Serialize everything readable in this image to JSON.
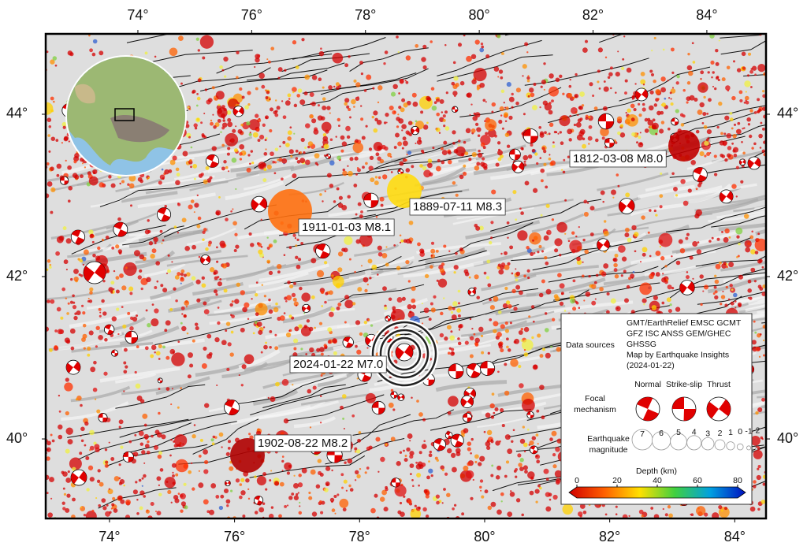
{
  "map": {
    "lon_ticks": [
      {
        "value": 74,
        "label": "74°"
      },
      {
        "value": 76,
        "label": "76°"
      },
      {
        "value": 78,
        "label": "78°"
      },
      {
        "value": 80,
        "label": "80°"
      },
      {
        "value": 82,
        "label": "82°"
      },
      {
        "value": 84,
        "label": "84°"
      }
    ],
    "lat_ticks": [
      {
        "value": 40,
        "label": "40°"
      },
      {
        "value": 42,
        "label": "42°"
      },
      {
        "value": 44,
        "label": "44°"
      }
    ],
    "top_lon_range": [
      72.38,
      85.04
    ],
    "bottom_lon_range": [
      72.98,
      84.5
    ],
    "lat_range": [
      39.02,
      44.99
    ],
    "events": [
      {
        "label": "1812-03-08 M8.0"
      },
      {
        "label": "1889-07-11 M8.3"
      },
      {
        "label": "1911-01-03 M8.1"
      },
      {
        "label": "2024-01-22 M7.0"
      },
      {
        "label": "1902-08-22 M8.2"
      }
    ]
  },
  "legend": {
    "data_sources_title": "Data sources",
    "data_sources": [
      "GMT/EarthRelief EMSC GCMT",
      "GFZ ISC ANSS GEM/GHEC",
      "GHSSG",
      "Map by Earthquake Insights",
      "(2024-01-22)"
    ],
    "focal_title": [
      "Focal",
      "mechanism"
    ],
    "focal_types": [
      "Normal",
      "Strike-slip",
      "Thrust"
    ],
    "magnitude_title": [
      "Earthquake",
      "magnitude"
    ],
    "magnitudes": [
      7,
      6,
      5,
      4,
      3,
      2,
      1,
      0,
      -1,
      -2
    ],
    "depth_title": "Depth (km)",
    "depth_range": [
      0,
      80
    ],
    "depth_ticks": [
      0,
      20,
      40,
      60,
      80
    ]
  }
}
